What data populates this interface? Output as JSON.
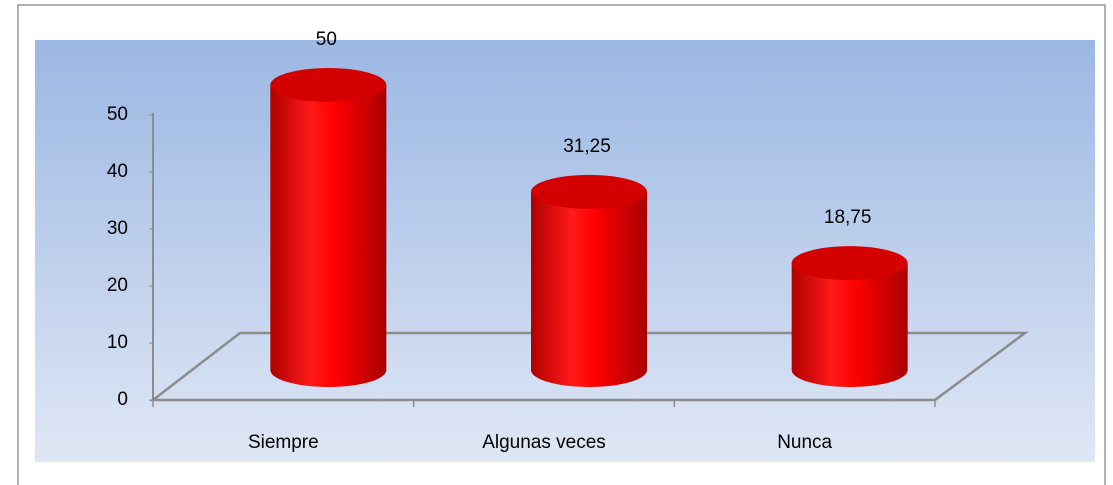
{
  "chart_data": {
    "type": "bar3d",
    "categories": [
      "Siempre",
      "Algunas veces",
      "Nunca"
    ],
    "values": [
      50,
      31.25,
      18.75
    ],
    "value_labels": [
      "50",
      "31,25",
      "18,75"
    ],
    "color": "#ff0000",
    "ylim": [
      0,
      50
    ],
    "yticks": [
      0,
      10,
      20,
      30,
      40,
      50
    ]
  }
}
